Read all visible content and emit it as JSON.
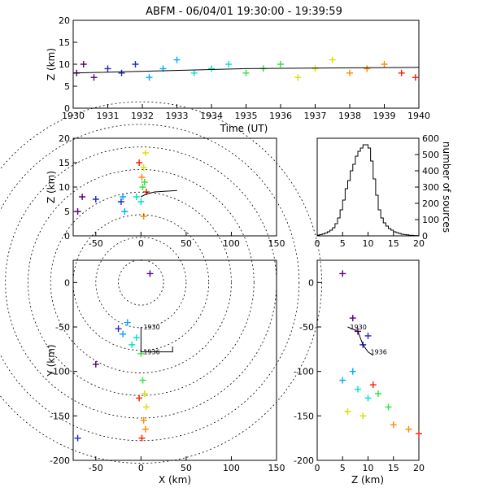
{
  "title": "ABFM - 06/04/01 19:30:00 - 19:39:59",
  "colors": {
    "rainbow": [
      "#5a0078",
      "#1e28c8",
      "#00aaff",
      "#00e0c8",
      "#30e040",
      "#d8e000",
      "#ff8800",
      "#ff1a00"
    ],
    "axis": "#000000"
  },
  "chart_data": [
    {
      "type": "scatter",
      "panel": "time-height",
      "title": "ABFM - 06/04/01 19:30:00 - 19:39:59",
      "xlabel": "Time (UT)",
      "ylabel": "Z (km)",
      "xlim": [
        1930,
        1940
      ],
      "ylim": [
        0,
        20
      ],
      "xticks": [
        "1930",
        "1931",
        "1932",
        "1933",
        "1934",
        "1935",
        "1936",
        "1937",
        "1938",
        "1939",
        "1940"
      ],
      "yticks": [
        "0",
        "5",
        "10",
        "15",
        "20"
      ],
      "points": [
        [
          1930.1,
          8
        ],
        [
          1930.3,
          10
        ],
        [
          1930.6,
          7
        ],
        [
          1931,
          9
        ],
        [
          1931.4,
          8
        ],
        [
          1931.8,
          10
        ],
        [
          1932.2,
          7
        ],
        [
          1932.6,
          9
        ],
        [
          1933,
          11
        ],
        [
          1933.5,
          8
        ],
        [
          1934,
          9
        ],
        [
          1934.5,
          10
        ],
        [
          1935,
          8
        ],
        [
          1935.5,
          9
        ],
        [
          1936,
          10
        ],
        [
          1936.5,
          7
        ],
        [
          1937,
          9
        ],
        [
          1937.5,
          11
        ],
        [
          1938,
          8
        ],
        [
          1938.5,
          9
        ],
        [
          1939,
          10
        ],
        [
          1939.5,
          8
        ],
        [
          1939.9,
          7
        ]
      ],
      "trend": [
        [
          1930,
          8
        ],
        [
          1935,
          9
        ],
        [
          1940,
          9.3
        ]
      ]
    },
    {
      "type": "scatter",
      "panel": "x-z",
      "xlabel": "",
      "ylabel": "Z (km)",
      "xlim": [
        -75,
        150
      ],
      "ylim": [
        0,
        20
      ],
      "xticks": [
        "-50",
        "0",
        "50",
        "100",
        "150"
      ],
      "yticks": [
        "0",
        "5",
        "10",
        "15",
        "20"
      ],
      "points": [
        [
          -70,
          5
        ],
        [
          -65,
          8
        ],
        [
          -50,
          7.5
        ],
        [
          -22,
          7
        ],
        [
          -20,
          8
        ],
        [
          -18,
          5
        ],
        [
          -5,
          8
        ],
        [
          0,
          7
        ],
        [
          2,
          10
        ],
        [
          4,
          11
        ],
        [
          3,
          14
        ],
        [
          5,
          17
        ],
        [
          1,
          12
        ],
        [
          3,
          4
        ],
        [
          6,
          9
        ],
        [
          -2,
          15
        ]
      ],
      "trend": [
        [
          0,
          8
        ],
        [
          5,
          8.5
        ],
        [
          15,
          9
        ],
        [
          40,
          9.3
        ]
      ]
    },
    {
      "type": "histogram",
      "panel": "altitude-histogram",
      "ylabel": "number of sources",
      "xlim": [
        0,
        20
      ],
      "ylim": [
        0,
        600
      ],
      "xticks": [
        "0",
        "5",
        "10",
        "15",
        "20"
      ],
      "yticks": [
        "0",
        "100",
        "200",
        "300",
        "400",
        "500",
        "600"
      ],
      "bins_x": [
        0,
        0.5,
        1,
        1.5,
        2,
        2.5,
        3,
        3.5,
        4,
        4.5,
        5,
        5.5,
        6,
        6.5,
        7,
        7.5,
        8,
        8.5,
        9,
        9.5,
        10,
        10.5,
        11,
        11.5,
        12,
        12.5,
        13,
        13.5,
        14,
        14.5,
        15,
        15.5,
        16,
        16.5,
        17,
        17.5,
        18,
        18.5,
        19,
        19.5
      ],
      "counts": [
        5,
        8,
        12,
        18,
        25,
        35,
        50,
        75,
        110,
        160,
        220,
        290,
        340,
        400,
        440,
        490,
        520,
        540,
        560,
        560,
        540,
        460,
        350,
        250,
        160,
        110,
        80,
        60,
        45,
        35,
        25,
        20,
        15,
        10,
        8,
        6,
        4,
        3,
        2,
        1
      ]
    },
    {
      "type": "scatter",
      "panel": "plan-view",
      "xlabel": "X (km)",
      "ylabel": "Y (km)",
      "xlim": [
        -75,
        150
      ],
      "ylim": [
        -200,
        25
      ],
      "xticks": [
        "-50",
        "0",
        "50",
        "100",
        "150"
      ],
      "yticks": [
        "-200",
        "-150",
        "-100",
        "-50",
        "0"
      ],
      "annotations": [
        "1930",
        "1936"
      ],
      "points": [
        [
          10,
          10
        ],
        [
          -50,
          -92
        ],
        [
          -70,
          -175
        ],
        [
          -25,
          -52
        ],
        [
          -20,
          -58
        ],
        [
          -15,
          -45
        ],
        [
          -10,
          -70
        ],
        [
          -5,
          -62
        ],
        [
          0,
          -80
        ],
        [
          2,
          -110
        ],
        [
          4,
          -125
        ],
        [
          6,
          -140
        ],
        [
          3,
          -155
        ],
        [
          5,
          -165
        ],
        [
          1,
          -175
        ],
        [
          -2,
          -130
        ]
      ],
      "trend": [
        [
          0,
          -50
        ],
        [
          0,
          -78
        ],
        [
          10,
          -78
        ],
        [
          35,
          -78
        ],
        [
          35,
          -72
        ]
      ]
    },
    {
      "type": "scatter",
      "panel": "z-y",
      "xlabel": "Z (km)",
      "ylabel": "",
      "xlim": [
        0,
        20
      ],
      "ylim": [
        -200,
        25
      ],
      "xticks": [
        "0",
        "5",
        "10",
        "15",
        "20"
      ],
      "yticks": [
        "-200",
        "-150",
        "-100",
        "-50",
        "0"
      ],
      "annotations": [
        "1930",
        "1936"
      ],
      "points": [
        [
          5,
          10
        ],
        [
          7,
          -40
        ],
        [
          8,
          -55
        ],
        [
          10,
          -60
        ],
        [
          9,
          -70
        ],
        [
          7,
          -100
        ],
        [
          5,
          -110
        ],
        [
          8,
          -120
        ],
        [
          10,
          -130
        ],
        [
          12,
          -125
        ],
        [
          14,
          -140
        ],
        [
          6,
          -145
        ],
        [
          9,
          -150
        ],
        [
          15,
          -160
        ],
        [
          18,
          -165
        ],
        [
          20,
          -170
        ],
        [
          11,
          -115
        ]
      ],
      "trend": [
        [
          6,
          -50
        ],
        [
          8,
          -55
        ],
        [
          9,
          -70
        ],
        [
          10,
          -78
        ],
        [
          11,
          -82
        ]
      ]
    }
  ]
}
